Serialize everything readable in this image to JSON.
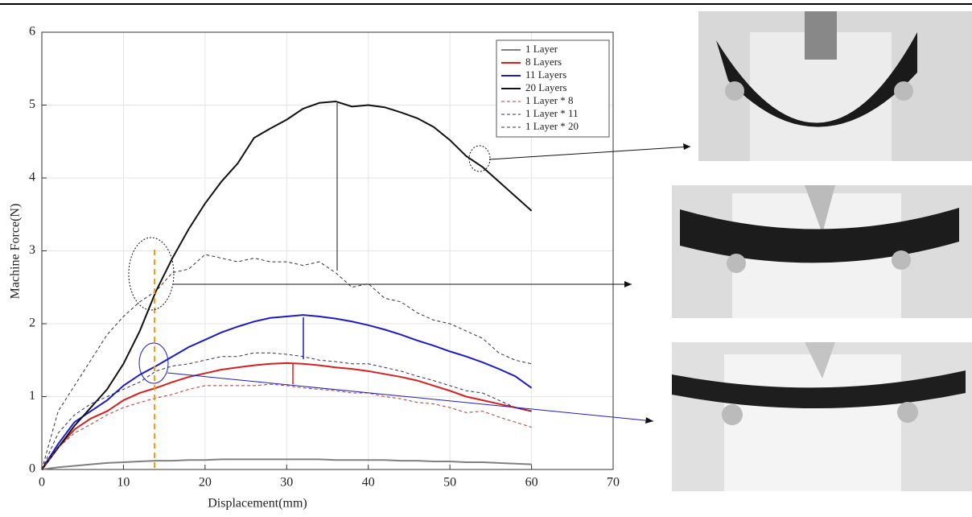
{
  "chart_data": {
    "type": "line",
    "xlabel": "Displacement(mm)",
    "ylabel": "Machine Force(N)",
    "x": [
      0,
      2,
      4,
      6,
      8,
      10,
      12,
      14,
      16,
      18,
      20,
      22,
      24,
      26,
      28,
      30,
      32,
      34,
      36,
      38,
      40,
      42,
      44,
      46,
      48,
      50,
      52,
      54,
      56,
      58,
      60
    ],
    "xlim": [
      0,
      70
    ],
    "xticks": [
      0,
      10,
      20,
      30,
      40,
      50,
      60,
      70
    ],
    "ylim": [
      0,
      6
    ],
    "yticks": [
      0,
      1,
      2,
      3,
      4,
      5,
      6
    ],
    "grid": true,
    "legend": "upper right",
    "series": [
      {
        "name": "1 Layer",
        "color": "#808080",
        "linestyle": "solid",
        "values": [
          0,
          0.03,
          0.05,
          0.07,
          0.09,
          0.1,
          0.11,
          0.12,
          0.12,
          0.13,
          0.13,
          0.14,
          0.14,
          0.14,
          0.14,
          0.14,
          0.14,
          0.14,
          0.13,
          0.13,
          0.13,
          0.13,
          0.12,
          0.12,
          0.11,
          0.11,
          0.1,
          0.1,
          0.09,
          0.08,
          0.07
        ]
      },
      {
        "name": "8 Layers",
        "color": "#d42020",
        "linestyle": "solid",
        "values": [
          0,
          0.3,
          0.55,
          0.7,
          0.8,
          0.95,
          1.05,
          1.12,
          1.2,
          1.27,
          1.32,
          1.37,
          1.4,
          1.43,
          1.45,
          1.46,
          1.45,
          1.43,
          1.4,
          1.38,
          1.35,
          1.31,
          1.27,
          1.22,
          1.15,
          1.08,
          1.0,
          0.95,
          0.9,
          0.85,
          0.8
        ]
      },
      {
        "name": "11 Layers",
        "color": "#1c1cc4",
        "linestyle": "solid",
        "values": [
          0,
          0.35,
          0.65,
          0.8,
          0.95,
          1.15,
          1.3,
          1.42,
          1.55,
          1.68,
          1.78,
          1.88,
          1.96,
          2.03,
          2.08,
          2.1,
          2.12,
          2.1,
          2.07,
          2.03,
          1.98,
          1.92,
          1.85,
          1.77,
          1.7,
          1.62,
          1.55,
          1.47,
          1.38,
          1.28,
          1.12
        ]
      },
      {
        "name": "20 Layers",
        "color": "#111111",
        "linestyle": "solid",
        "values": [
          0,
          0.3,
          0.6,
          0.85,
          1.1,
          1.45,
          1.9,
          2.45,
          2.9,
          3.3,
          3.65,
          3.95,
          4.2,
          4.55,
          4.68,
          4.8,
          4.95,
          5.03,
          5.05,
          4.98,
          5.0,
          4.97,
          4.9,
          4.82,
          4.7,
          4.52,
          4.3,
          4.15,
          3.95,
          3.75,
          3.55
        ]
      },
      {
        "name": "1 Layer * 8",
        "color": "#b03a3a",
        "linestyle": "dashed",
        "values": [
          0,
          0.3,
          0.5,
          0.62,
          0.75,
          0.85,
          0.92,
          0.98,
          1.03,
          1.1,
          1.15,
          1.15,
          1.15,
          1.15,
          1.17,
          1.15,
          1.12,
          1.1,
          1.08,
          1.05,
          1.05,
          1.0,
          0.97,
          0.92,
          0.9,
          0.85,
          0.78,
          0.8,
          0.72,
          0.65,
          0.58
        ]
      },
      {
        "name": "1 Layer * 11",
        "color": "#30305a",
        "linestyle": "dashed",
        "values": [
          0,
          0.5,
          0.75,
          0.9,
          1.0,
          1.1,
          1.2,
          1.35,
          1.42,
          1.45,
          1.5,
          1.55,
          1.55,
          1.6,
          1.6,
          1.58,
          1.55,
          1.5,
          1.48,
          1.45,
          1.45,
          1.4,
          1.35,
          1.28,
          1.22,
          1.15,
          1.08,
          1.05,
          0.95,
          0.85,
          0.8
        ]
      },
      {
        "name": "1 Layer * 20",
        "color": "#333333",
        "linestyle": "dashed",
        "values": [
          0,
          0.8,
          1.15,
          1.5,
          1.85,
          2.1,
          2.3,
          2.45,
          2.7,
          2.75,
          2.95,
          2.9,
          2.85,
          2.9,
          2.85,
          2.85,
          2.8,
          2.85,
          2.7,
          2.5,
          2.55,
          2.35,
          2.3,
          2.15,
          2.05,
          2.0,
          1.9,
          1.8,
          1.6,
          1.5,
          1.45
        ]
      }
    ]
  }
}
